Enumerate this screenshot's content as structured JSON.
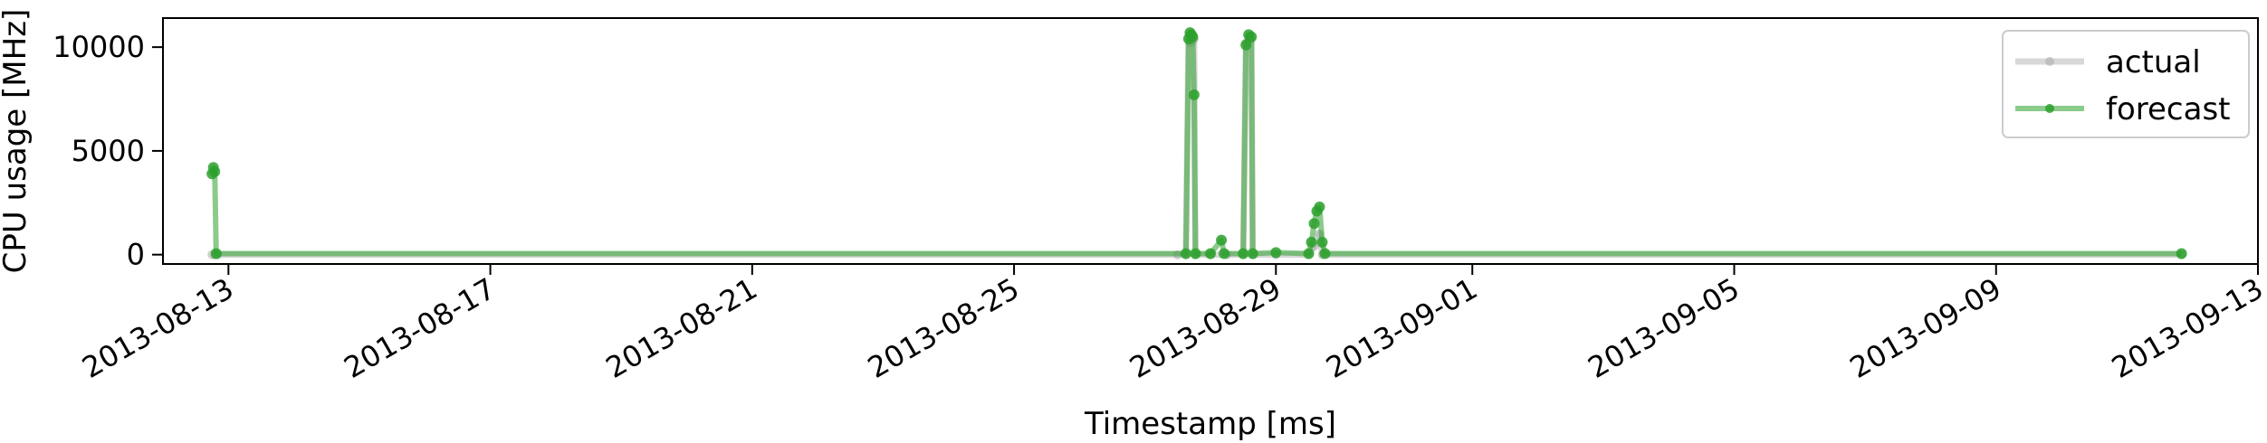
{
  "chart_data": {
    "type": "line",
    "title": "",
    "xlabel": "Timestamp [ms]",
    "ylabel": "CPU usage [MHz]",
    "ylim": [
      -450,
      11400
    ],
    "xlim": [
      "2013-08-12T00:00",
      "2013-09-13T00:00"
    ],
    "yticks": [
      0,
      5000,
      10000
    ],
    "xticks": [
      "2013-08-13",
      "2013-08-17",
      "2013-08-21",
      "2013-08-25",
      "2013-08-29",
      "2013-09-01",
      "2013-09-05",
      "2013-09-09",
      "2013-09-13"
    ],
    "grid": false,
    "legend_position": "top-right",
    "series": [
      {
        "name": "actual",
        "color": "#a9a9a9",
        "points": [
          [
            "2013-08-12T18:00",
            0
          ],
          [
            "2013-08-12T19:00",
            0
          ],
          [
            "2013-08-12T20:00",
            0
          ],
          [
            "2013-08-27T12:00",
            0
          ],
          [
            "2013-08-27T15:00",
            0
          ],
          [
            "2013-08-27T16:00",
            10500
          ],
          [
            "2013-08-27T16:30",
            10200
          ],
          [
            "2013-08-27T17:00",
            10600
          ],
          [
            "2013-08-27T17:30",
            10300
          ],
          [
            "2013-08-27T18:00",
            10400
          ],
          [
            "2013-08-27T18:30",
            0
          ],
          [
            "2013-08-28T00:00",
            0
          ],
          [
            "2013-08-28T06:00",
            0
          ],
          [
            "2013-08-28T12:00",
            0
          ],
          [
            "2013-08-28T13:00",
            10200
          ],
          [
            "2013-08-28T14:00",
            10500
          ],
          [
            "2013-08-28T15:00",
            10400
          ],
          [
            "2013-08-28T15:30",
            0
          ],
          [
            "2013-08-29T00:00",
            0
          ],
          [
            "2013-08-29T12:00",
            0
          ],
          [
            "2013-08-29T14:00",
            400
          ],
          [
            "2013-08-29T16:00",
            1000
          ],
          [
            "2013-08-29T17:00",
            0
          ],
          [
            "2013-09-11T20:00",
            0
          ]
        ]
      },
      {
        "name": "forecast",
        "color": "#2ca02c",
        "points": [
          [
            "2013-08-12T18:00",
            3900
          ],
          [
            "2013-08-12T18:30",
            4200
          ],
          [
            "2013-08-12T19:00",
            4000
          ],
          [
            "2013-08-12T19:30",
            50
          ],
          [
            "2013-08-27T15:00",
            50
          ],
          [
            "2013-08-27T16:00",
            10400
          ],
          [
            "2013-08-27T16:30",
            10700
          ],
          [
            "2013-08-27T17:00",
            10600
          ],
          [
            "2013-08-27T17:30",
            10500
          ],
          [
            "2013-08-27T18:00",
            7700
          ],
          [
            "2013-08-27T18:30",
            50
          ],
          [
            "2013-08-28T00:00",
            50
          ],
          [
            "2013-08-28T04:00",
            700
          ],
          [
            "2013-08-28T05:00",
            50
          ],
          [
            "2013-08-28T12:00",
            50
          ],
          [
            "2013-08-28T13:00",
            10100
          ],
          [
            "2013-08-28T14:00",
            10600
          ],
          [
            "2013-08-28T15:00",
            10500
          ],
          [
            "2013-08-28T15:30",
            50
          ],
          [
            "2013-08-29T00:00",
            100
          ],
          [
            "2013-08-29T12:00",
            50
          ],
          [
            "2013-08-29T13:00",
            600
          ],
          [
            "2013-08-29T14:00",
            1500
          ],
          [
            "2013-08-29T15:00",
            2100
          ],
          [
            "2013-08-29T16:00",
            2300
          ],
          [
            "2013-08-29T17:00",
            600
          ],
          [
            "2013-08-29T18:00",
            50
          ],
          [
            "2013-09-11T20:00",
            50
          ]
        ]
      }
    ]
  }
}
